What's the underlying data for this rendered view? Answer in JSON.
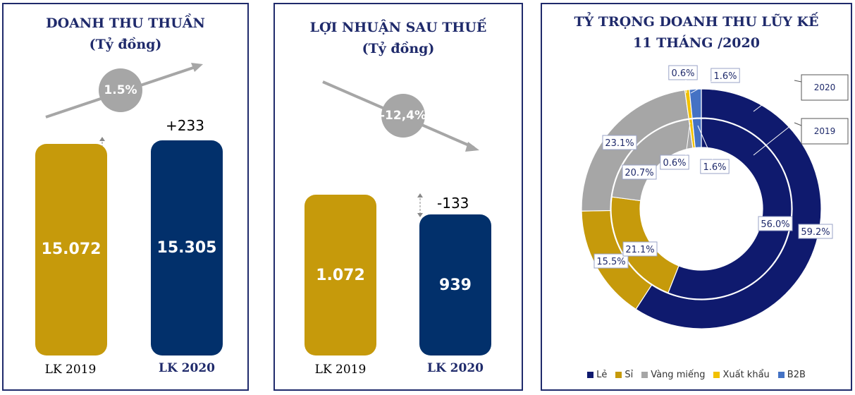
{
  "chart_data": [
    {
      "type": "bar",
      "title": "DOANH THU THUẦN\n(Tỷ đồng)",
      "categories": [
        "LK 2019",
        "LK 2020"
      ],
      "values": [
        15072,
        15305
      ],
      "value_labels": [
        "15.072",
        "15.305"
      ],
      "change_label": "+233",
      "growth_label": "1.5%",
      "colors": [
        "#c69a0b",
        "#02306b"
      ]
    },
    {
      "type": "bar",
      "title": "LỢI NHUẬN SAU THUẾ\n(Tỷ đồng)",
      "categories": [
        "LK 2019",
        "LK 2020"
      ],
      "values": [
        1072,
        939
      ],
      "value_labels": [
        "1.072",
        "939"
      ],
      "change_label": "-133",
      "growth_label": "-12,4%",
      "colors": [
        "#c69a0b",
        "#02306b"
      ]
    },
    {
      "type": "pie",
      "title": "TỶ TRỌNG DOANH THU LŨY KẾ\n11 THÁNG /2020",
      "categories": [
        "Lẻ",
        "Sỉ",
        "Vàng miếng",
        "Xuất khẩu",
        "B2B"
      ],
      "colors": [
        "#0f1a6e",
        "#c69a0b",
        "#a6a6a6",
        "#f2c100",
        "#4472c4"
      ],
      "series": [
        {
          "name": "2020",
          "values": [
            59.2,
            15.5,
            23.1,
            0.6,
            1.6
          ],
          "labels": [
            "59.2%",
            "15.5%",
            "23.1%",
            "0.6%",
            "1.6%"
          ]
        },
        {
          "name": "2019",
          "values": [
            56.0,
            21.1,
            20.7,
            0.6,
            1.6
          ],
          "labels": [
            "56.0%",
            "21.1%",
            "20.7%",
            "0.6%",
            "1.6%"
          ]
        }
      ],
      "legend_position": "bottom"
    }
  ]
}
